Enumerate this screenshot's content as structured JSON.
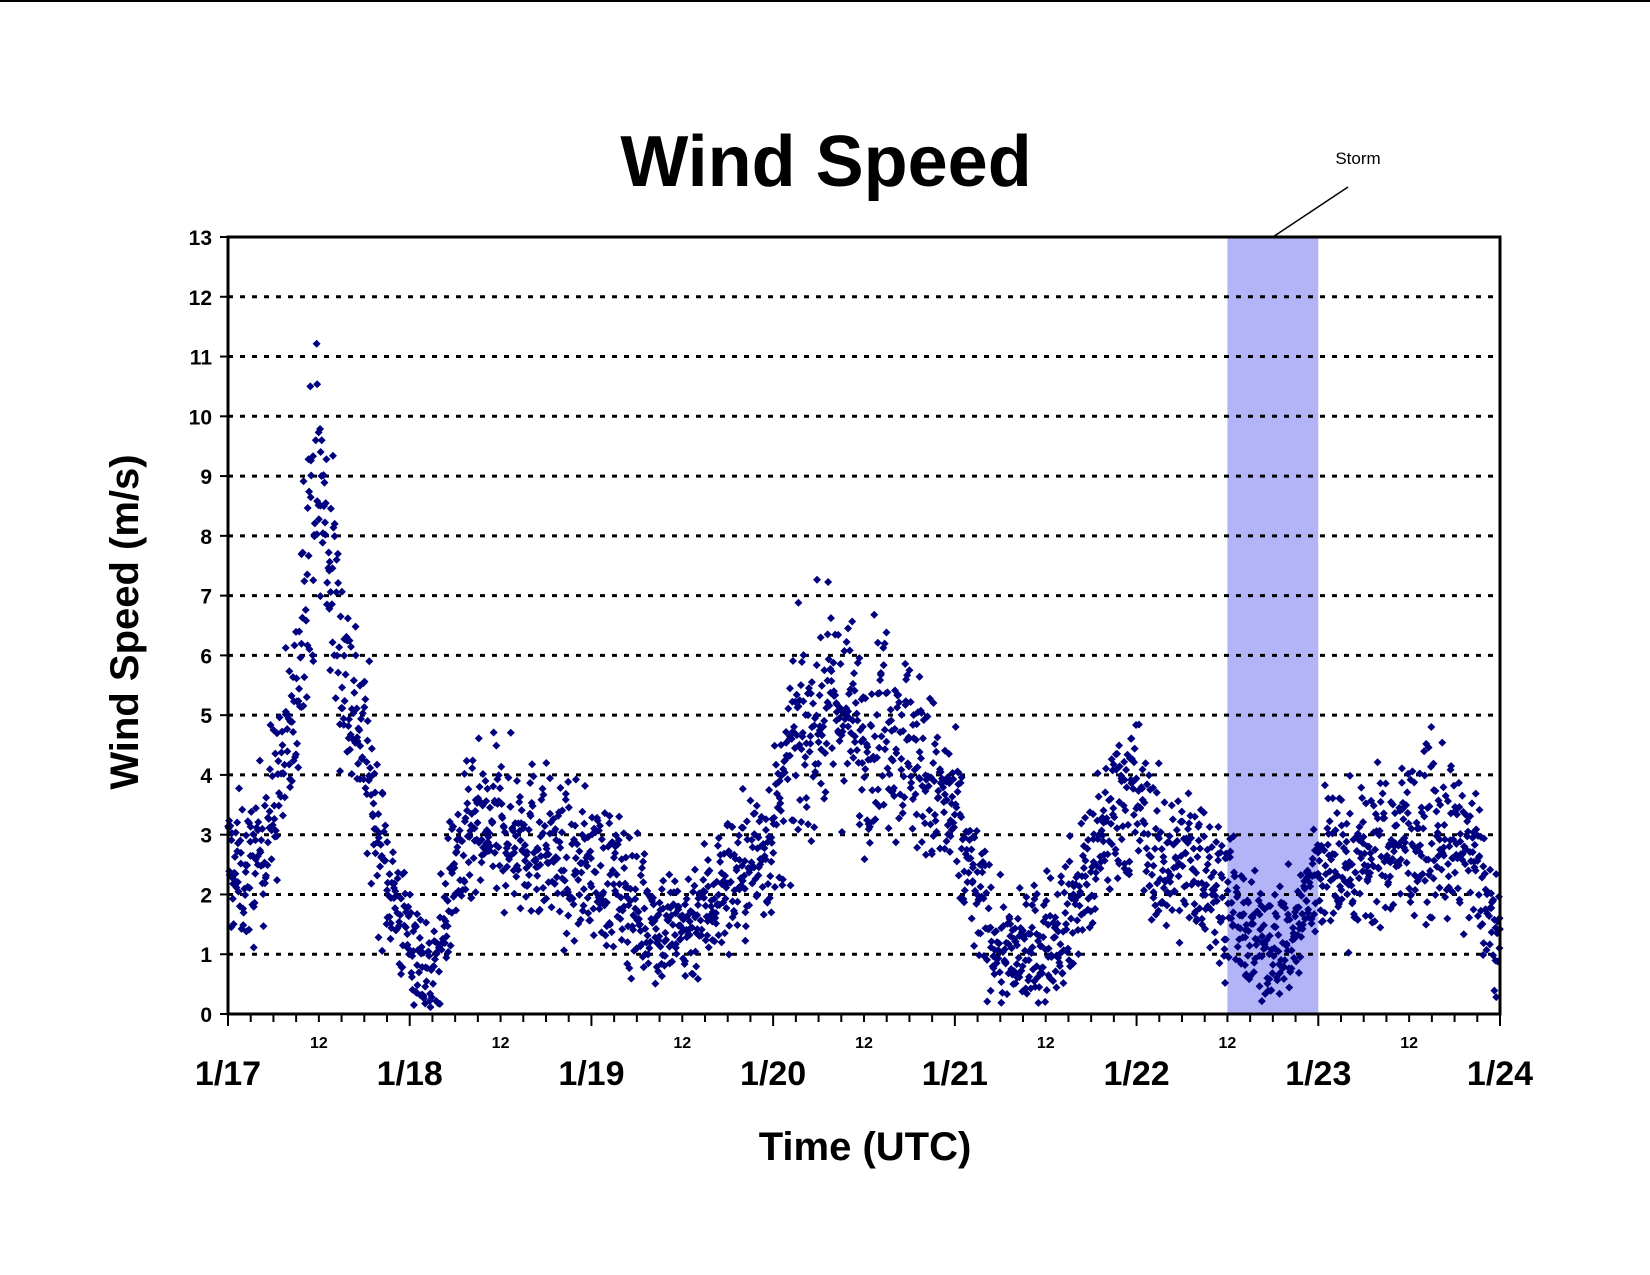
{
  "chart_data": {
    "type": "scatter",
    "title": "Wind Speed",
    "xlabel": "Time (UTC)",
    "ylabel": "Wind Speed (m/s)",
    "ylim": [
      0,
      13
    ],
    "xlim": [
      "1/17 00:00",
      "1/24 00:00"
    ],
    "yticks": [
      "0",
      "1",
      "2",
      "3",
      "4",
      "5",
      "6",
      "7",
      "8",
      "9",
      "10",
      "11",
      "12",
      "13"
    ],
    "x_date_ticks": [
      "1/17",
      "1/18",
      "1/19",
      "1/20",
      "1/21",
      "1/22",
      "1/23",
      "1/24"
    ],
    "x_hour_ticks": [
      "12",
      "12",
      "12",
      "12",
      "12",
      "12",
      "12"
    ],
    "grid": "horizontal dotted",
    "colors": {
      "marker": "#00007f",
      "storm_band": "#b3b3f8"
    },
    "marker": "diamond",
    "storm": {
      "label": "Storm",
      "start": "1/22 12:00",
      "end": "1/23 00:00"
    },
    "series_trend": {
      "x": [
        "1/17 00:00",
        "1/17 03:00",
        "1/17 06:00",
        "1/17 09:00",
        "1/17 10:00",
        "1/17 12:00",
        "1/17 15:00",
        "1/17 18:00",
        "1/17 20:00",
        "1/17 23:00",
        "1/18 03:00",
        "1/18 06:00",
        "1/18 09:00",
        "1/18 12:00",
        "1/18 15:00",
        "1/18 18:00",
        "1/18 21:00",
        "1/19 00:00",
        "1/19 03:00",
        "1/19 06:00",
        "1/19 09:00",
        "1/19 12:00",
        "1/19 15:00",
        "1/19 18:00",
        "1/19 21:00",
        "1/20 00:00",
        "1/20 03:00",
        "1/20 06:00",
        "1/20 09:00",
        "1/20 12:00",
        "1/20 15:00",
        "1/20 18:00",
        "1/20 21:00",
        "1/21 00:00",
        "1/21 03:00",
        "1/21 06:00",
        "1/21 09:00",
        "1/21 12:00",
        "1/21 15:00",
        "1/21 18:00",
        "1/21 20:00",
        "1/21 22:00",
        "1/22 00:00",
        "1/22 03:00",
        "1/22 06:00",
        "1/22 09:00",
        "1/22 12:00",
        "1/22 15:00",
        "1/22 18:00",
        "1/22 21:00",
        "1/23 00:00",
        "1/23 03:00",
        "1/23 06:00",
        "1/23 09:00",
        "1/23 12:00",
        "1/23 15:00",
        "1/23 18:00",
        "1/23 21:00",
        "1/24 00:00"
      ],
      "y": [
        2.5,
        2.3,
        3.5,
        5.0,
        7.5,
        9.0,
        6.0,
        4.5,
        2.8,
        1.5,
        0.5,
        2.5,
        3.0,
        3.1,
        3.0,
        2.8,
        2.4,
        2.5,
        2.2,
        1.8,
        1.5,
        1.4,
        1.8,
        2.2,
        2.5,
        3.0,
        4.5,
        5.0,
        5.2,
        4.5,
        5.0,
        4.5,
        3.8,
        3.2,
        2.0,
        1.0,
        1.0,
        1.2,
        1.7,
        2.4,
        3.0,
        3.8,
        3.5,
        2.5,
        2.6,
        2.4,
        2.0,
        1.2,
        1.2,
        1.3,
        2.5,
        2.5,
        2.6,
        2.8,
        3.0,
        3.0,
        2.8,
        2.5,
        1.0
      ]
    }
  }
}
